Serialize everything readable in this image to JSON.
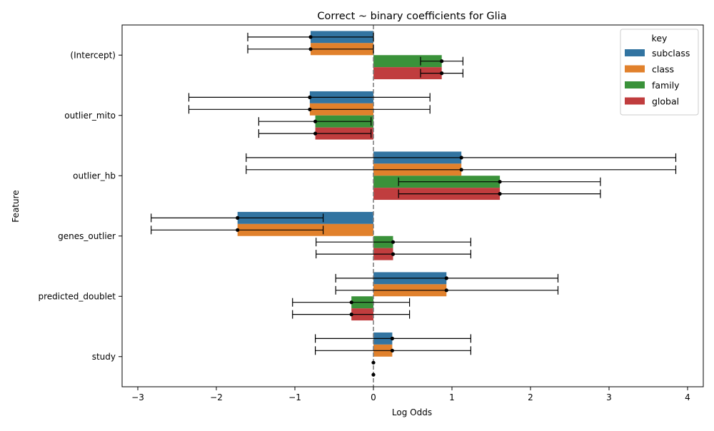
{
  "chart_data": {
    "type": "bar",
    "orientation": "horizontal",
    "title": "Correct ~ binary coefficients for Glia",
    "xlabel": "Log Odds",
    "ylabel": "Feature",
    "xlim": [
      -3.2,
      4.2
    ],
    "xticks": [
      -3,
      -2,
      -1,
      0,
      1,
      2,
      3,
      4
    ],
    "xtick_labels": [
      "−3",
      "−2",
      "−1",
      "0",
      "1",
      "2",
      "3",
      "4"
    ],
    "reference_line": 0,
    "grid": false,
    "legend": {
      "title": "key",
      "position": "top-right"
    },
    "categories": [
      "(Intercept)",
      "outlier_mito",
      "outlier_hb",
      "genes_outlier",
      "predicted_doublet",
      "study"
    ],
    "series": [
      {
        "name": "subclass",
        "color": "#3274a1",
        "values": [
          -0.8,
          -0.81,
          1.12,
          -1.73,
          0.93,
          0.24
        ],
        "lower": [
          -1.6,
          -2.35,
          -1.62,
          -2.83,
          -0.48,
          -0.74
        ],
        "upper": [
          0.0,
          0.72,
          3.85,
          -0.64,
          2.35,
          1.24
        ]
      },
      {
        "name": "class",
        "color": "#e1812c",
        "values": [
          -0.8,
          -0.81,
          1.12,
          -1.73,
          0.93,
          0.24
        ],
        "lower": [
          -1.6,
          -2.35,
          -1.62,
          -2.83,
          -0.48,
          -0.74
        ],
        "upper": [
          0.0,
          0.72,
          3.85,
          -0.64,
          2.35,
          1.24
        ]
      },
      {
        "name": "family",
        "color": "#3a923a",
        "values": [
          0.87,
          -0.74,
          1.61,
          0.25,
          -0.28,
          0.0
        ],
        "lower": [
          0.6,
          -1.46,
          0.32,
          -0.73,
          -1.03,
          null
        ],
        "upper": [
          1.14,
          -0.03,
          2.89,
          1.24,
          0.46,
          null
        ]
      },
      {
        "name": "global",
        "color": "#c03d3e",
        "values": [
          0.87,
          -0.74,
          1.61,
          0.25,
          -0.28,
          0.0
        ],
        "lower": [
          0.6,
          -1.46,
          0.32,
          -0.73,
          -1.03,
          null
        ],
        "upper": [
          1.14,
          -0.03,
          2.89,
          1.24,
          0.46,
          null
        ]
      }
    ]
  }
}
